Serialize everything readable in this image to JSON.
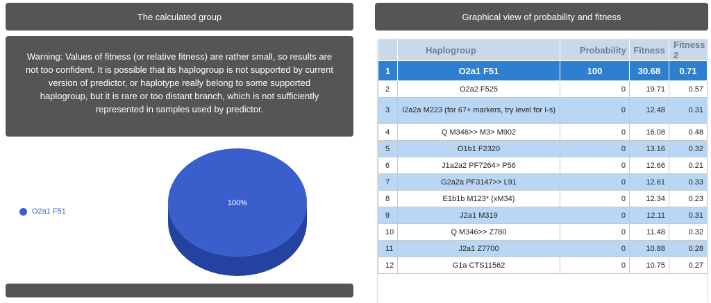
{
  "left_panel": {
    "header": "The calculated group",
    "warning": "Warning: Values of fitness (or relative fitness) are rather small, so results are not too confident. It is possible that its haplogroup is not supported by current version of predictor, or haplotype really belong to some supported haplogroup, but it is rare or too distant branch, which is not sufficiently represented in samples used by predictor."
  },
  "chart_data": {
    "type": "pie",
    "slices": [
      {
        "label": "O2a1 F51",
        "value": 100,
        "color": "#3a5fcd"
      }
    ],
    "slice_label": "100%",
    "legend": {
      "position": "left",
      "entries": [
        "O2a1 F51"
      ]
    }
  },
  "right_panel": {
    "header": "Graphical view of probability and fitness",
    "columns": [
      "Haplogroup",
      "Probability",
      "Fitness",
      "Fitness 2"
    ],
    "rows": [
      {
        "idx": "1",
        "name": "O2a1 F51",
        "prob": "100",
        "fit": "30.68",
        "fit2": "0.71"
      },
      {
        "idx": "2",
        "name": "O2a2 F525",
        "prob": "0",
        "fit": "19.71",
        "fit2": "0.57"
      },
      {
        "idx": "3",
        "name": "I2a2a M223 (for 67+ markers, try level for I-s)",
        "prob": "0",
        "fit": "12.48",
        "fit2": "0.31"
      },
      {
        "idx": "4",
        "name": "Q M346>> M3> M902",
        "prob": "0",
        "fit": "16.08",
        "fit2": "0.48"
      },
      {
        "idx": "5",
        "name": "O1b1 F2320",
        "prob": "0",
        "fit": "13.16",
        "fit2": "0.32"
      },
      {
        "idx": "6",
        "name": "J1a2a2 PF7264> P56",
        "prob": "0",
        "fit": "12.66",
        "fit2": "0.21"
      },
      {
        "idx": "7",
        "name": "G2a2a PF3147>> L91",
        "prob": "0",
        "fit": "12.61",
        "fit2": "0.33"
      },
      {
        "idx": "8",
        "name": "E1b1b M123* (xM34)",
        "prob": "0",
        "fit": "12.34",
        "fit2": "0.23"
      },
      {
        "idx": "9",
        "name": "J2a1 M319",
        "prob": "0",
        "fit": "12.11",
        "fit2": "0.31"
      },
      {
        "idx": "10",
        "name": "Q M346>> Z780",
        "prob": "0",
        "fit": "11.48",
        "fit2": "0.32"
      },
      {
        "idx": "11",
        "name": "J2a1 Z7700",
        "prob": "0",
        "fit": "10.88",
        "fit2": "0.28"
      },
      {
        "idx": "12",
        "name": "G1a CTS11562",
        "prob": "0",
        "fit": "10.75",
        "fit2": "0.27"
      }
    ]
  }
}
